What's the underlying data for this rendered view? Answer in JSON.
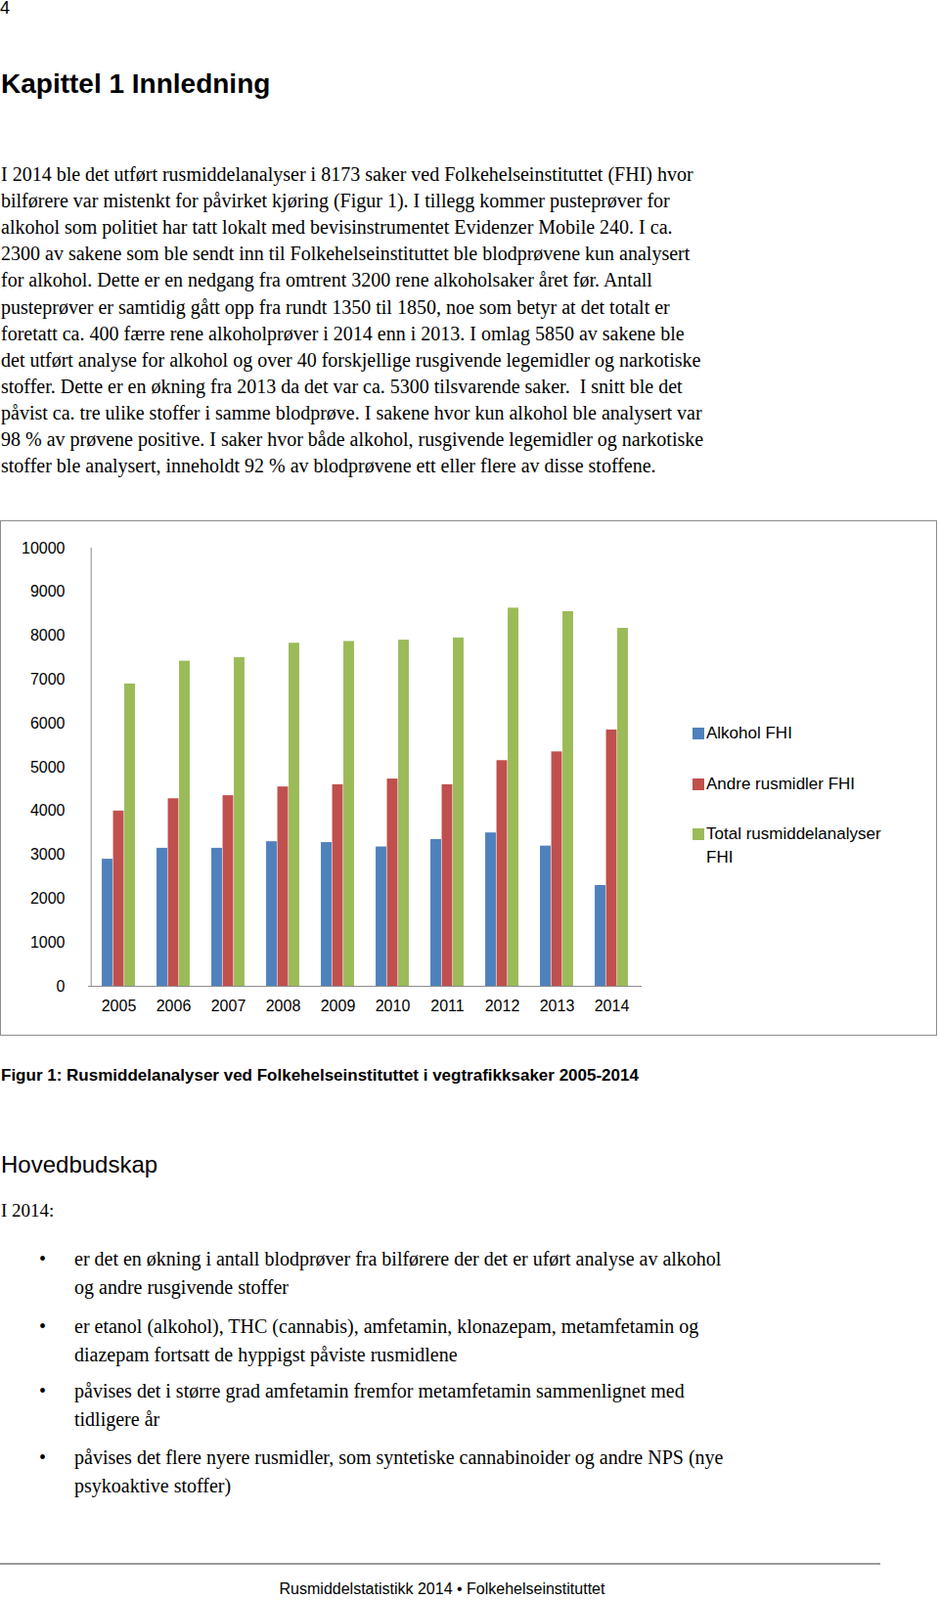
{
  "header": {
    "page_number": "4",
    "title": "Kapittel 1 Innledning"
  },
  "intro": {
    "lines": [
      "I 2014 ble det utført rusmiddelanalyser i 8173 saker ved Folkehelseinstituttet (FHI) hvor",
      "bilførere var mistenkt for påvirket kjøring (Figur 1). I tillegg kommer pusteprøver for",
      "alkohol som politiet har tatt lokalt med bevisinstrumentet Evidenzer Mobile 240. I ca.",
      "2300 av sakene som ble sendt inn til Folkehelseinstituttet ble blodprøvene kun analysert",
      "for alkohol. Dette er en nedgang fra omtrent 3200 rene alkoholsaker året før. Antall",
      "pusteprøver er samtidig gått opp fra rundt 1350 til 1850, noe som betyr at det totalt er",
      "foretatt ca. 400 færre rene alkoholprøver i 2014 enn i 2013. I omlag 5850 av sakene ble",
      "det utført analyse for alkohol og over 40 forskjellige rusgivende legemidler og narkotiske",
      "stoffer. Dette er en økning fra 2013 da det var ca. 5300 tilsvarende saker.  I snitt ble det",
      "påvist ca. tre ulike stoffer i samme blodprøve. I sakene hvor kun alkohol ble analysert var",
      "98 % av prøvene positive. I saker hvor både alkohol, rusgivende legemidler og narkotiske",
      "stoffer ble analysert, inneholdt 92 % av blodprøvene ett eller flere av disse stoffene."
    ]
  },
  "chart_data": {
    "type": "bar",
    "categories": [
      "2005",
      "2006",
      "2007",
      "2008",
      "2009",
      "2010",
      "2011",
      "2012",
      "2013",
      "2014"
    ],
    "series": [
      {
        "name": "Alkohol FHI",
        "color": "#4f81bd",
        "values": [
          2900,
          3150,
          3150,
          3300,
          3280,
          3180,
          3350,
          3500,
          3200,
          2300
        ]
      },
      {
        "name": "Andre rusmidler FHI",
        "color": "#c0504d",
        "values": [
          4000,
          4280,
          4350,
          4550,
          4600,
          4730,
          4600,
          5150,
          5350,
          5850
        ]
      },
      {
        "name": "Total rusmiddelanalyser FHI",
        "color": "#9bbb59",
        "values": [
          6900,
          7420,
          7500,
          7830,
          7870,
          7900,
          7950,
          8630,
          8550,
          8170
        ]
      }
    ],
    "ylim": [
      0,
      10000
    ],
    "yticks": [
      0,
      1000,
      2000,
      3000,
      4000,
      5000,
      6000,
      7000,
      8000,
      9000,
      10000
    ],
    "grid": false,
    "legend": "right"
  },
  "caption": "Figur 1: Rusmiddelanalyser ved Folkehelseinstituttet i vegtrafikksaker 2005-2014",
  "summary": {
    "title": "Hovedbudskap",
    "lead": "I 2014:",
    "bullets": [
      [
        "er det en økning i antall blodprøver fra bilførere der det er uført analyse av alkohol",
        "og andre rusgivende stoffer"
      ],
      [
        "er etanol (alkohol), THC (cannabis), amfetamin, klonazepam, metamfetamin og",
        "diazepam fortsatt de hyppigst påviste rusmidlene"
      ],
      [
        "påvises det i større grad amfetamin fremfor metamfetamin sammenlignet med",
        "tidligere år"
      ],
      [
        "påvises det flere nyere rusmidler, som syntetiske cannabinoider og andre NPS (nye",
        "psykoaktive stoffer)"
      ]
    ]
  },
  "footer": "Rusmiddelstatistikk 2014 • Folkehelseinstituttet"
}
